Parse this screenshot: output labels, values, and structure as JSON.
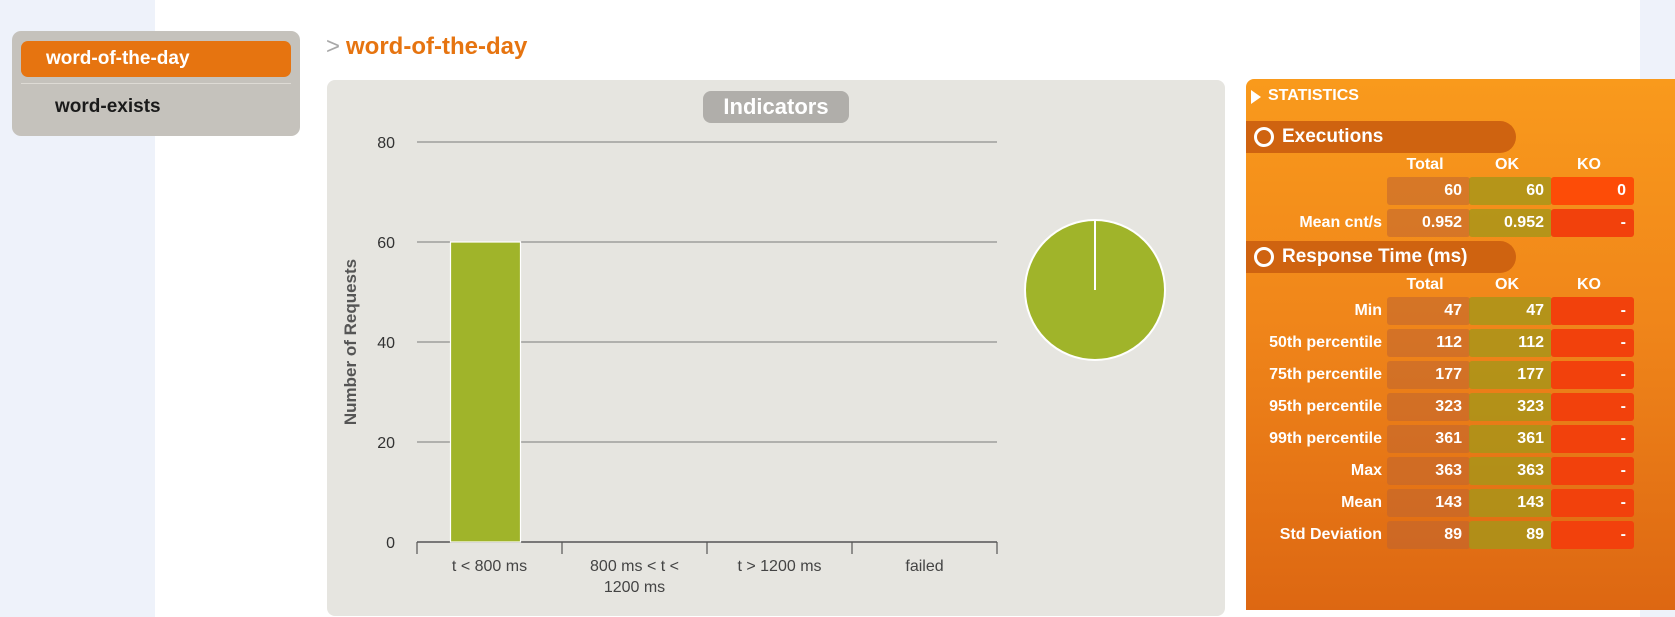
{
  "sidebar": {
    "items": [
      {
        "label": "word-of-the-day",
        "active": true
      },
      {
        "label": "word-exists",
        "active": false
      }
    ]
  },
  "page": {
    "arrow": ">",
    "title": "word-of-the-day"
  },
  "indicators": {
    "title": "Indicators"
  },
  "chart_data": {
    "type": "bar",
    "categories": [
      "t < 800 ms",
      "800 ms < t < 1200 ms",
      "t > 1200 ms",
      "failed"
    ],
    "category_lines": [
      [
        "t < 800 ms"
      ],
      [
        "800 ms < t <",
        "1200 ms"
      ],
      [
        "t > 1200 ms"
      ],
      [
        "failed"
      ]
    ],
    "values": [
      60,
      0,
      0,
      0
    ],
    "ylabel": "Number of Requests",
    "xlabel": "",
    "title": "Indicators",
    "ylim": [
      0,
      80
    ],
    "yticks": [
      0,
      20,
      40,
      60,
      80
    ],
    "grid": true,
    "bar_color": "#a0b42a",
    "pie": {
      "slices": [
        {
          "category": "t < 800 ms",
          "value": 60,
          "color": "#a0b42a"
        }
      ]
    }
  },
  "stats": {
    "header": "STATISTICS",
    "executions": {
      "title": "Executions",
      "columns": [
        "Total",
        "OK",
        "KO"
      ],
      "rows": [
        {
          "label": "",
          "total": "60",
          "ok": "60",
          "ko": "0"
        },
        {
          "label": "Mean cnt/s",
          "total": "0.952",
          "ok": "0.952",
          "ko": "-"
        }
      ]
    },
    "response_time": {
      "title": "Response Time (ms)",
      "columns": [
        "Total",
        "OK",
        "KO"
      ],
      "rows": [
        {
          "label": "Min",
          "total": "47",
          "ok": "47",
          "ko": "-"
        },
        {
          "label": "50th percentile",
          "total": "112",
          "ok": "112",
          "ko": "-"
        },
        {
          "label": "75th percentile",
          "total": "177",
          "ok": "177",
          "ko": "-"
        },
        {
          "label": "95th percentile",
          "total": "323",
          "ok": "323",
          "ko": "-"
        },
        {
          "label": "99th percentile",
          "total": "361",
          "ok": "361",
          "ko": "-"
        },
        {
          "label": "Max",
          "total": "363",
          "ok": "363",
          "ko": "-"
        },
        {
          "label": "Mean",
          "total": "143",
          "ok": "143",
          "ko": "-"
        },
        {
          "label": "Std Deviation",
          "total": "89",
          "ok": "89",
          "ko": "-"
        }
      ]
    }
  }
}
